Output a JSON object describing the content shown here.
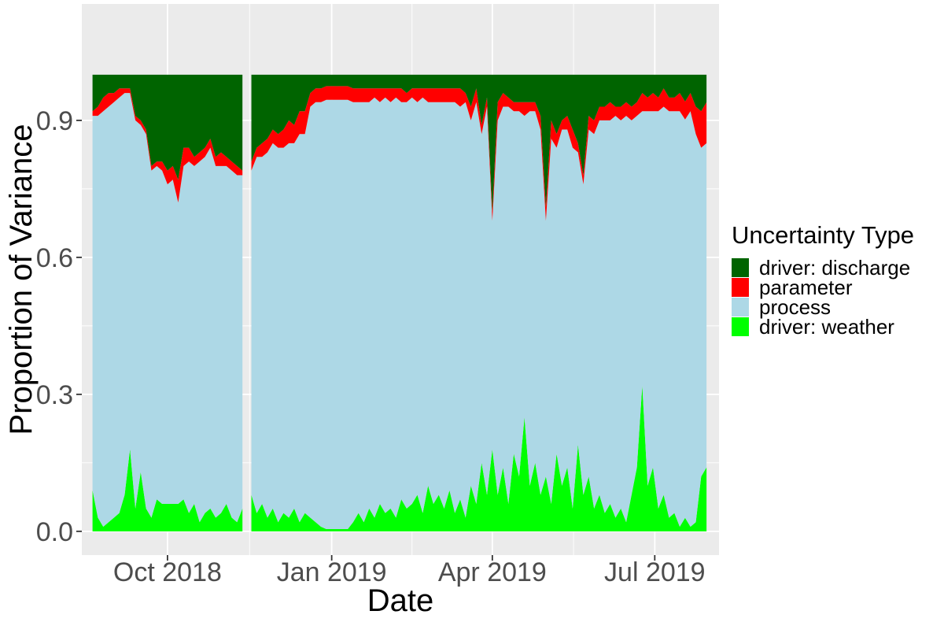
{
  "chart_data": {
    "type": "area",
    "stacked": true,
    "normalized": true,
    "xlabel": "Date",
    "ylabel": "Proportion of Variance",
    "x_ticks": [
      "Oct 2018",
      "Jan 2019",
      "Apr 2019",
      "Jul 2019"
    ],
    "x_tick_dates": [
      "2018-10-01",
      "2019-01-01",
      "2019-04-01",
      "2019-07-01"
    ],
    "y_ticks": [
      "0.0",
      "0.3",
      "0.6",
      "0.9"
    ],
    "y_tick_values": [
      0,
      0.3,
      0.6,
      0.9
    ],
    "xlim": [
      "2018-08-14",
      "2019-08-06"
    ],
    "ylim": [
      -0.052,
      1.155
    ],
    "gap": [
      "2018-11-13",
      "2018-11-16"
    ],
    "legend": {
      "title": "Uncertainty Type",
      "position": "right",
      "entries": [
        {
          "label": "driver: discharge",
          "color": "#006400"
        },
        {
          "label": "parameter",
          "color": "#ff0000"
        },
        {
          "label": "process",
          "color": "#add8e6"
        },
        {
          "label": "driver: weather",
          "color": "#00ff00"
        }
      ]
    },
    "x": [
      "2018-08-20",
      "2018-08-23",
      "2018-08-26",
      "2018-08-29",
      "2018-09-01",
      "2018-09-04",
      "2018-09-07",
      "2018-09-10",
      "2018-09-13",
      "2018-09-16",
      "2018-09-19",
      "2018-09-22",
      "2018-09-25",
      "2018-09-28",
      "2018-10-01",
      "2018-10-04",
      "2018-10-07",
      "2018-10-10",
      "2018-10-13",
      "2018-10-16",
      "2018-10-19",
      "2018-10-22",
      "2018-10-25",
      "2018-10-28",
      "2018-10-31",
      "2018-11-03",
      "2018-11-06",
      "2018-11-09",
      "2018-11-12",
      "2018-11-17",
      "2018-11-20",
      "2018-11-23",
      "2018-11-26",
      "2018-11-29",
      "2018-12-02",
      "2018-12-05",
      "2018-12-08",
      "2018-12-11",
      "2018-12-14",
      "2018-12-17",
      "2018-12-20",
      "2018-12-23",
      "2018-12-26",
      "2018-12-29",
      "2019-01-01",
      "2019-01-04",
      "2019-01-07",
      "2019-01-10",
      "2019-01-13",
      "2019-01-16",
      "2019-01-19",
      "2019-01-22",
      "2019-01-25",
      "2019-01-28",
      "2019-01-31",
      "2019-02-03",
      "2019-02-06",
      "2019-02-09",
      "2019-02-12",
      "2019-02-15",
      "2019-02-18",
      "2019-02-21",
      "2019-02-24",
      "2019-02-27",
      "2019-03-02",
      "2019-03-05",
      "2019-03-08",
      "2019-03-11",
      "2019-03-14",
      "2019-03-17",
      "2019-03-20",
      "2019-03-23",
      "2019-03-26",
      "2019-03-29",
      "2019-04-01",
      "2019-04-04",
      "2019-04-07",
      "2019-04-10",
      "2019-04-13",
      "2019-04-16",
      "2019-04-19",
      "2019-04-22",
      "2019-04-25",
      "2019-04-28",
      "2019-05-01",
      "2019-05-04",
      "2019-05-07",
      "2019-05-10",
      "2019-05-13",
      "2019-05-16",
      "2019-05-19",
      "2019-05-22",
      "2019-05-25",
      "2019-05-28",
      "2019-05-31",
      "2019-06-03",
      "2019-06-06",
      "2019-06-09",
      "2019-06-12",
      "2019-06-15",
      "2019-06-18",
      "2019-06-21",
      "2019-06-24",
      "2019-06-27",
      "2019-06-30",
      "2019-07-03",
      "2019-07-06",
      "2019-07-09",
      "2019-07-12",
      "2019-07-15",
      "2019-07-18",
      "2019-07-21",
      "2019-07-24",
      "2019-07-27",
      "2019-07-30"
    ],
    "series": [
      {
        "name": "driver: weather",
        "values": [
          0.09,
          0.03,
          0.01,
          0.02,
          0.03,
          0.04,
          0.08,
          0.18,
          0.05,
          0.13,
          0.05,
          0.03,
          0.07,
          0.06,
          0.06,
          0.06,
          0.06,
          0.07,
          0.04,
          0.06,
          0.02,
          0.04,
          0.05,
          0.03,
          0.04,
          0.06,
          0.03,
          0.02,
          0.05,
          0.08,
          0.04,
          0.06,
          0.03,
          0.05,
          0.02,
          0.04,
          0.03,
          0.05,
          0.02,
          0.04,
          0.03,
          0.02,
          0.01,
          0.005,
          0.005,
          0.005,
          0.005,
          0.005,
          0.02,
          0.04,
          0.02,
          0.05,
          0.03,
          0.06,
          0.04,
          0.05,
          0.03,
          0.07,
          0.05,
          0.06,
          0.08,
          0.04,
          0.1,
          0.06,
          0.08,
          0.05,
          0.09,
          0.04,
          0.07,
          0.03,
          0.1,
          0.06,
          0.15,
          0.08,
          0.18,
          0.08,
          0.14,
          0.06,
          0.17,
          0.12,
          0.25,
          0.1,
          0.15,
          0.08,
          0.12,
          0.06,
          0.17,
          0.1,
          0.14,
          0.05,
          0.19,
          0.08,
          0.12,
          0.05,
          0.08,
          0.04,
          0.06,
          0.03,
          0.05,
          0.02,
          0.08,
          0.14,
          0.32,
          0.1,
          0.14,
          0.05,
          0.08,
          0.03,
          0.04,
          0.01,
          0.03,
          0.01,
          0.02,
          0.12,
          0.14
        ]
      },
      {
        "name": "process",
        "values": [
          0.82,
          0.88,
          0.91,
          0.91,
          0.91,
          0.91,
          0.88,
          0.78,
          0.85,
          0.76,
          0.82,
          0.76,
          0.73,
          0.73,
          0.7,
          0.71,
          0.66,
          0.73,
          0.77,
          0.74,
          0.79,
          0.78,
          0.79,
          0.77,
          0.76,
          0.74,
          0.76,
          0.76,
          0.73,
          0.71,
          0.78,
          0.76,
          0.8,
          0.8,
          0.82,
          0.8,
          0.82,
          0.8,
          0.85,
          0.83,
          0.9,
          0.92,
          0.93,
          0.94,
          0.94,
          0.94,
          0.94,
          0.94,
          0.92,
          0.9,
          0.92,
          0.89,
          0.92,
          0.88,
          0.91,
          0.89,
          0.92,
          0.87,
          0.89,
          0.89,
          0.86,
          0.91,
          0.84,
          0.88,
          0.86,
          0.89,
          0.85,
          0.9,
          0.86,
          0.91,
          0.8,
          0.88,
          0.72,
          0.85,
          0.5,
          0.82,
          0.79,
          0.87,
          0.75,
          0.8,
          0.66,
          0.82,
          0.77,
          0.8,
          0.56,
          0.8,
          0.67,
          0.78,
          0.74,
          0.79,
          0.64,
          0.68,
          0.76,
          0.82,
          0.82,
          0.86,
          0.84,
          0.88,
          0.85,
          0.89,
          0.82,
          0.77,
          0.6,
          0.82,
          0.78,
          0.87,
          0.85,
          0.89,
          0.88,
          0.91,
          0.89,
          0.91,
          0.85,
          0.72,
          0.71
        ]
      },
      {
        "name": "parameter",
        "values": [
          0.01,
          0.02,
          0.03,
          0.03,
          0.02,
          0.02,
          0.01,
          0.01,
          0.01,
          0.01,
          0.01,
          0.01,
          0.01,
          0.02,
          0.03,
          0.03,
          0.05,
          0.04,
          0.03,
          0.02,
          0.02,
          0.02,
          0.02,
          0.02,
          0.03,
          0.02,
          0.02,
          0.02,
          0.01,
          0.02,
          0.02,
          0.03,
          0.03,
          0.03,
          0.03,
          0.04,
          0.05,
          0.04,
          0.05,
          0.05,
          0.03,
          0.03,
          0.03,
          0.03,
          0.03,
          0.03,
          0.03,
          0.03,
          0.03,
          0.03,
          0.03,
          0.03,
          0.02,
          0.03,
          0.02,
          0.03,
          0.02,
          0.03,
          0.02,
          0.02,
          0.03,
          0.02,
          0.03,
          0.03,
          0.03,
          0.03,
          0.03,
          0.03,
          0.04,
          0.02,
          0.03,
          0.03,
          0.02,
          0.02,
          0.02,
          0.04,
          0.03,
          0.02,
          0.02,
          0.02,
          0.03,
          0.02,
          0.02,
          0.03,
          0.03,
          0.04,
          0.03,
          0.02,
          0.03,
          0.04,
          0.02,
          0.02,
          0.03,
          0.03,
          0.03,
          0.03,
          0.04,
          0.02,
          0.03,
          0.03,
          0.03,
          0.03,
          0.04,
          0.03,
          0.04,
          0.03,
          0.04,
          0.03,
          0.03,
          0.04,
          0.04,
          0.04,
          0.06,
          0.08,
          0.09
        ]
      },
      {
        "name": "driver: discharge",
        "values": [
          0.08,
          0.07,
          0.05,
          0.04,
          0.04,
          0.03,
          0.03,
          0.03,
          0.09,
          0.1,
          0.12,
          0.2,
          0.19,
          0.19,
          0.21,
          0.2,
          0.23,
          0.16,
          0.16,
          0.18,
          0.17,
          0.16,
          0.14,
          0.18,
          0.17,
          0.18,
          0.19,
          0.2,
          0.21,
          0.19,
          0.16,
          0.15,
          0.14,
          0.12,
          0.13,
          0.12,
          0.1,
          0.11,
          0.08,
          0.08,
          0.04,
          0.03,
          0.03,
          0.025,
          0.025,
          0.025,
          0.025,
          0.025,
          0.03,
          0.03,
          0.03,
          0.03,
          0.03,
          0.03,
          0.03,
          0.03,
          0.03,
          0.03,
          0.04,
          0.03,
          0.03,
          0.03,
          0.03,
          0.03,
          0.03,
          0.03,
          0.03,
          0.03,
          0.03,
          0.04,
          0.07,
          0.03,
          0.11,
          0.05,
          0.3,
          0.06,
          0.04,
          0.05,
          0.06,
          0.06,
          0.06,
          0.06,
          0.06,
          0.09,
          0.29,
          0.1,
          0.13,
          0.1,
          0.09,
          0.12,
          0.15,
          0.22,
          0.09,
          0.1,
          0.07,
          0.07,
          0.06,
          0.07,
          0.07,
          0.06,
          0.07,
          0.06,
          0.04,
          0.05,
          0.04,
          0.05,
          0.03,
          0.05,
          0.05,
          0.04,
          0.06,
          0.04,
          0.07,
          0.08,
          0.06
        ]
      }
    ]
  }
}
